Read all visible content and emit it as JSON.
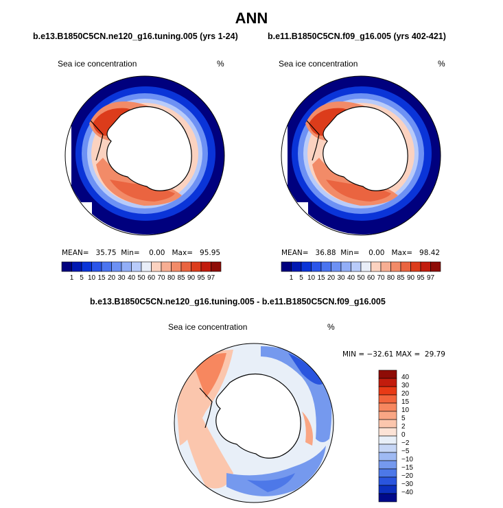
{
  "title": "ANN",
  "panels": [
    {
      "case_title": "b.e13.B1850C5CN.ne120_g16.tuning.005 (yrs 1-24)",
      "variable": "Sea ice concentration",
      "units": "%",
      "stats": {
        "mean_label": "MEAN=",
        "mean": "35.75",
        "min_label": "Min=",
        "min": "0.00",
        "max_label": "Max=",
        "max": "95.95"
      }
    },
    {
      "case_title": "b.e11.B1850C5CN.f09_g16.005 (yrs 402-421)",
      "variable": "Sea ice concentration",
      "units": "%",
      "stats": {
        "mean_label": "MEAN=",
        "mean": "36.88",
        "min_label": "Min=",
        "min": "0.00",
        "max_label": "Max=",
        "max": "98.42"
      }
    }
  ],
  "diff_panel": {
    "case_title": "b.e13.B1850C5CN.ne120_g16.tuning.005 - b.e11.B1850C5CN.f09_g16.005",
    "variable": "Sea ice concentration",
    "units": "%",
    "stats_text": "MIN = −32.61 MAX =  29.79"
  },
  "abs_colorbar": {
    "labels": [
      "1",
      "5",
      "10",
      "15",
      "20",
      "30",
      "40",
      "50",
      "60",
      "70",
      "80",
      "85",
      "90",
      "95",
      "97"
    ],
    "colors": [
      "#00007e",
      "#0018b2",
      "#0a34d8",
      "#2a55ea",
      "#4a74f0",
      "#6d91f4",
      "#92aef7",
      "#b8cbfa",
      "#e9eef8",
      "#fbd2c0",
      "#f7ae93",
      "#f28b68",
      "#ea6440",
      "#dc3c1b",
      "#c21c0d",
      "#8e0c06"
    ]
  },
  "diff_colorbar": {
    "labels": [
      "40",
      "30",
      "20",
      "15",
      "10",
      "5",
      "2",
      "0",
      "−2",
      "−5",
      "−10",
      "−15",
      "−20",
      "−30",
      "−40"
    ],
    "colors": [
      "#8e0c06",
      "#c21c0d",
      "#e83a16",
      "#f2643c",
      "#f7875f",
      "#f9a684",
      "#fbc6ad",
      "#fce3d6",
      "#e8eff8",
      "#c6d6f6",
      "#9fbaf3",
      "#7599ee",
      "#4d78e8",
      "#2a55de",
      "#0c30bf",
      "#000a8a"
    ]
  }
}
